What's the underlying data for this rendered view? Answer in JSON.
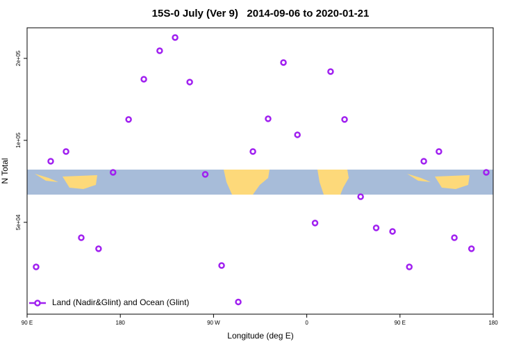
{
  "chart_data": {
    "type": "scatter",
    "title": "15S-0 July (Ver 9)   2014-09-06 to 2020-01-21",
    "x_label": "Longitude (deg E)",
    "y_label": "N Total",
    "y_log": true,
    "xlim": [
      90,
      540
    ],
    "xticks": [
      {
        "value": 90,
        "label": "90 E"
      },
      {
        "value": 180,
        "label": "180"
      },
      {
        "value": 270,
        "label": "90 W"
      },
      {
        "value": 360,
        "label": "0"
      },
      {
        "value": 450,
        "label": "90 E"
      },
      {
        "value": 540,
        "label": "180"
      }
    ],
    "ylim": [
      23000,
      259000
    ],
    "yticks": [
      {
        "value": 50000,
        "label": "5e+04"
      },
      {
        "value": 100000,
        "label": "1e+05"
      },
      {
        "value": 200000,
        "label": "2e+05"
      }
    ],
    "legend_position": "bottom-left",
    "series": [
      {
        "name": "Land (Nadir&Glint) and Ocean (Glint)",
        "color": "#a020f0",
        "x": [
          98.7,
          112.8,
          127.6,
          142.3,
          159,
          173,
          188,
          202.7,
          218,
          232.9,
          247,
          262,
          277.8,
          293.9,
          308,
          322.7,
          337.5,
          351,
          368,
          383,
          396.5,
          412,
          427,
          442.8,
          459,
          473,
          487.6,
          502.5,
          519,
          533.3
        ],
        "values": [
          34300,
          83800,
          91000,
          43900,
          40000,
          76300,
          119300,
          167700,
          213300,
          238600,
          163700,
          75000,
          34700,
          25500,
          91000,
          120000,
          193100,
          104800,
          49700,
          178900,
          119300,
          62100,
          47700,
          46300,
          34300,
          83800,
          91000,
          43900,
          40000,
          76300
        ]
      }
    ]
  }
}
